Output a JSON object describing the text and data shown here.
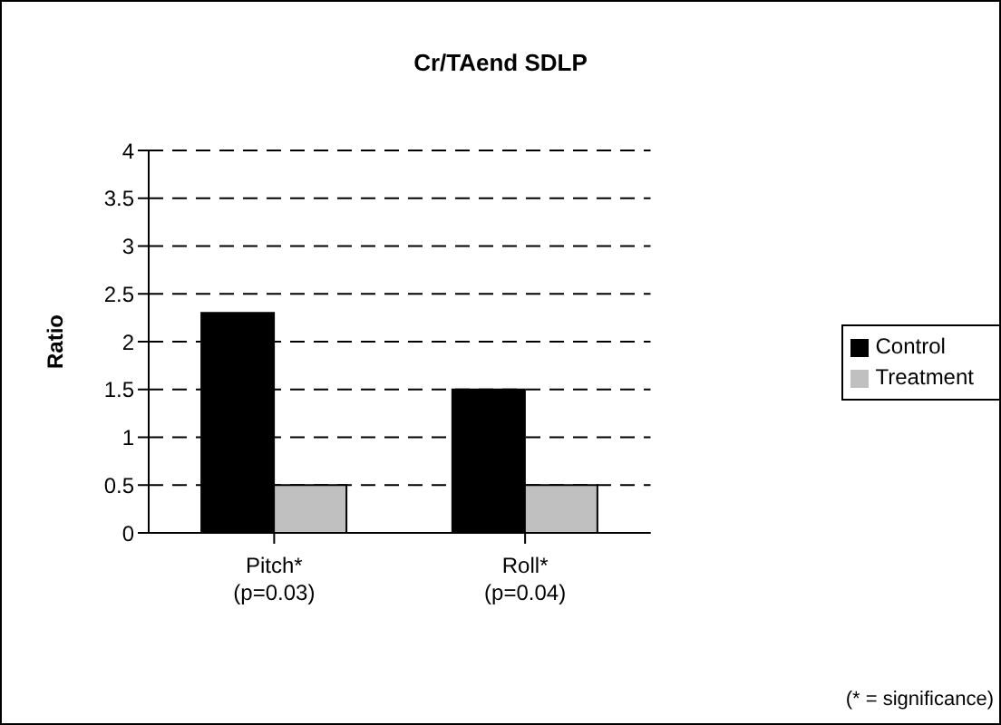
{
  "chart_data": {
    "type": "bar",
    "title": "Cr/TAend SDLP",
    "ylabel": "Ratio",
    "categories": [
      "Pitch*\n(p=0.03)",
      "Roll*\n(p=0.04)"
    ],
    "series": [
      {
        "name": "Control",
        "color": "#000000",
        "values": [
          2.3,
          1.5
        ]
      },
      {
        "name": "Treatment",
        "color": "#c0c0c0",
        "values": [
          0.5,
          0.5
        ]
      }
    ],
    "ylim": [
      0,
      4
    ],
    "yticks": [
      0,
      0.5,
      1,
      1.5,
      2,
      2.5,
      3,
      3.5,
      4
    ],
    "grid": "y",
    "legend": "right",
    "annotations": [
      "(* = significance)"
    ]
  }
}
